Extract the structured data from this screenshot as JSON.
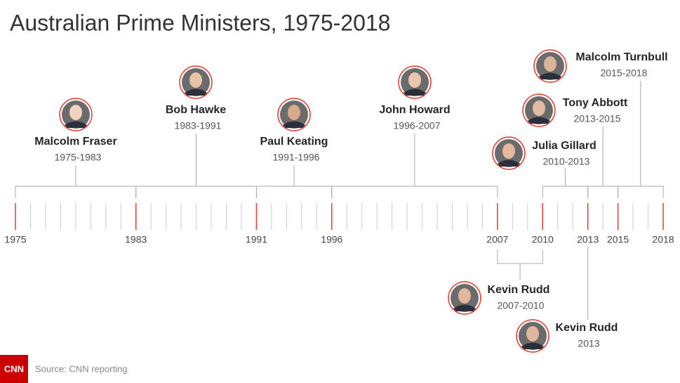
{
  "chart_data": {
    "type": "timeline",
    "title": "Australian Prime Ministers, 1975-2018",
    "source": "Source: CNN reporting",
    "logo": "CNN",
    "xlim": [
      1975,
      2018
    ],
    "xticks": [
      1975,
      1983,
      1991,
      1996,
      2007,
      2010,
      2013,
      2015,
      2018
    ],
    "minor_tick_step": 1,
    "color": "#e03c31",
    "periods": [
      {
        "name": "Malcolm Fraser",
        "start": 1975,
        "end": 1983,
        "label": "1975-1983"
      },
      {
        "name": "Bob Hawke",
        "start": 1983,
        "end": 1991,
        "label": "1983-1991"
      },
      {
        "name": "Paul Keating",
        "start": 1991,
        "end": 1996,
        "label": "1991-1996"
      },
      {
        "name": "John Howard",
        "start": 1996,
        "end": 2007,
        "label": "1996-2007"
      },
      {
        "name": "Kevin Rudd",
        "start": 2007,
        "end": 2010,
        "label": "2007-2010"
      },
      {
        "name": "Julia Gillard",
        "start": 2010,
        "end": 2013,
        "label": "2010-2013"
      },
      {
        "name": "Kevin Rudd",
        "start": 2013,
        "end": 2013,
        "label": "2013"
      },
      {
        "name": "Tony Abbott",
        "start": 2013,
        "end": 2015,
        "label": "2013-2015"
      },
      {
        "name": "Malcolm Turnbull",
        "start": 2015,
        "end": 2018,
        "label": "2015-2018"
      }
    ]
  }
}
